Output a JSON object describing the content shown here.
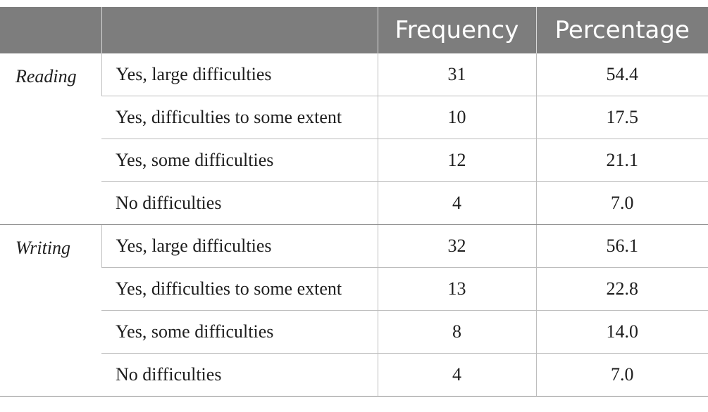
{
  "header": {
    "col1": "",
    "col2": "",
    "col3": "Frequency",
    "col4": "Percentage"
  },
  "groups": [
    {
      "label": "Reading",
      "rows": [
        {
          "item": "Yes, large difficulties",
          "frequency": "31",
          "percentage": "54.4"
        },
        {
          "item": "Yes, difficulties to some extent",
          "frequency": "10",
          "percentage": "17.5"
        },
        {
          "item": "Yes, some difficulties",
          "frequency": "12",
          "percentage": "21.1"
        },
        {
          "item": "No difficulties",
          "frequency": "4",
          "percentage": "7.0"
        }
      ]
    },
    {
      "label": "Writing",
      "rows": [
        {
          "item": "Yes, large difficulties",
          "frequency": "32",
          "percentage": "56.1"
        },
        {
          "item": "Yes, difficulties to some extent",
          "frequency": "13",
          "percentage": "22.8"
        },
        {
          "item": "Yes, some difficulties",
          "frequency": "8",
          "percentage": "14.0"
        },
        {
          "item": "No difficulties",
          "frequency": "4",
          "percentage": "7.0"
        }
      ]
    }
  ]
}
